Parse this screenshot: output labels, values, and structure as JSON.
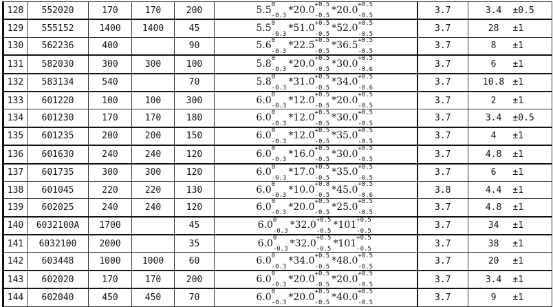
{
  "rows": [
    {
      "no": "128",
      "model": "552020",
      "c1": "170",
      "c2": "170",
      "c3": "200",
      "d": [
        {
          "v": "5.5",
          "up": "0",
          "dn": "-0.3"
        },
        {
          "v": "*20.0",
          "up": "+0.5",
          "dn": "-0.5"
        },
        {
          "v": "*20.0",
          "up": "+0.5",
          "dn": "-0.5"
        }
      ],
      "volt": "3.7",
      "mass": "3.4",
      "tol": "±0.5"
    },
    {
      "no": "129",
      "model": "555152",
      "c1": "1400",
      "c2": "1400",
      "c3": "45",
      "d": [
        {
          "v": "5.5",
          "up": "0",
          "dn": "-0.3"
        },
        {
          "v": "*51.0",
          "up": "+0.5",
          "dn": "-0.5"
        },
        {
          "v": "*52.0",
          "up": "+0.5",
          "dn": "-0.5"
        }
      ],
      "volt": "3.7",
      "mass": "28",
      "tol": "±1"
    },
    {
      "no": "130",
      "model": "562236",
      "c1": "400",
      "c2": "",
      "c3": "90",
      "d": [
        {
          "v": "5.6",
          "up": "0",
          "dn": "-0.3"
        },
        {
          "v": "*22.5",
          "up": "+0.5",
          "dn": "-0.5"
        },
        {
          "v": "*36.5",
          "up": "+0.5",
          "dn": "-0.5"
        }
      ],
      "volt": "3.7",
      "mass": "8",
      "tol": "±1"
    },
    {
      "no": "131",
      "model": "582030",
      "c1": "300",
      "c2": "300",
      "c3": "100",
      "d": [
        {
          "v": "5.8",
          "up": "0",
          "dn": "-0.3"
        },
        {
          "v": "*20.0",
          "up": "+0.5",
          "dn": "-0.5"
        },
        {
          "v": "*30.0",
          "up": "+0.5",
          "dn": "-0.6"
        }
      ],
      "volt": "3.7",
      "mass": "6",
      "tol": "±1"
    },
    {
      "no": "132",
      "model": "583134",
      "c1": "540",
      "c2": "",
      "c3": "70",
      "d": [
        {
          "v": "5.8",
          "up": "0",
          "dn": "-0.3"
        },
        {
          "v": "*31.0",
          "up": "+0.5",
          "dn": "-0.5"
        },
        {
          "v": "*34.0",
          "up": "+0.5",
          "dn": "-0.6"
        }
      ],
      "volt": "3.7",
      "mass": "10.8",
      "tol": "±1"
    },
    {
      "no": "133",
      "model": "601220",
      "c1": "100",
      "c2": "100",
      "c3": "300",
      "d": [
        {
          "v": "6.0",
          "up": "0",
          "dn": "-0.3"
        },
        {
          "v": "*12.0",
          "up": "+0.5",
          "dn": "-0.5"
        },
        {
          "v": "*20.0",
          "up": "+0.5",
          "dn": "-0.5"
        }
      ],
      "volt": "3.7",
      "mass": "2",
      "tol": "±1"
    },
    {
      "no": "134",
      "model": "601230",
      "c1": "170",
      "c2": "170",
      "c3": "180",
      "d": [
        {
          "v": "6.0",
          "up": "0",
          "dn": "-0.3"
        },
        {
          "v": "*12.0",
          "up": "+0.5",
          "dn": "-0.5"
        },
        {
          "v": "*30.0",
          "up": "+0.5",
          "dn": "-0.5"
        }
      ],
      "volt": "3.7",
      "mass": "3.4",
      "tol": "±0.5"
    },
    {
      "no": "135",
      "model": "601235",
      "c1": "200",
      "c2": "200",
      "c3": "150",
      "d": [
        {
          "v": "6.0",
          "up": "0",
          "dn": "-0.3"
        },
        {
          "v": "*12.0",
          "up": "+0.5",
          "dn": "-0.5"
        },
        {
          "v": "*35.0",
          "up": "+0.5",
          "dn": "-0.5"
        }
      ],
      "volt": "3.7",
      "mass": "4",
      "tol": "±1"
    },
    {
      "no": "136",
      "model": "601630",
      "c1": "240",
      "c2": "240",
      "c3": "120",
      "d": [
        {
          "v": "6.0",
          "up": "0",
          "dn": "-0.3"
        },
        {
          "v": "*16.0",
          "up": "+0.5",
          "dn": "-0.5"
        },
        {
          "v": "*30.0",
          "up": "+0.5",
          "dn": "-0.5"
        }
      ],
      "volt": "3.7",
      "mass": "4.8",
      "tol": "±1"
    },
    {
      "no": "137",
      "model": "601735",
      "c1": "300",
      "c2": "300",
      "c3": "120",
      "d": [
        {
          "v": "6.0",
          "up": "0",
          "dn": "-0.3"
        },
        {
          "v": "*17.0",
          "up": "+0.5",
          "dn": "-0.5"
        },
        {
          "v": "*35.0",
          "up": "+0.5",
          "dn": "-0.5"
        }
      ],
      "volt": "3.7",
      "mass": "6",
      "tol": "±1"
    },
    {
      "no": "138",
      "model": "601045",
      "c1": "220",
      "c2": "220",
      "c3": "130",
      "d": [
        {
          "v": "6.0",
          "up": "0",
          "dn": "-0.3"
        },
        {
          "v": "*10.0",
          "up": "+0.8",
          "dn": "-0.5"
        },
        {
          "v": "*45.0",
          "up": "+0.5",
          "dn": "-0.6"
        }
      ],
      "volt": "3.8",
      "mass": "4.4",
      "tol": "±1"
    },
    {
      "no": "139",
      "model": "602025",
      "c1": "240",
      "c2": "240",
      "c3": "120",
      "d": [
        {
          "v": "6.0",
          "up": "0",
          "dn": "-0.3"
        },
        {
          "v": "*20.0",
          "up": "+0.5",
          "dn": "-0.5"
        },
        {
          "v": "*25.0",
          "up": "+0.5",
          "dn": "-0.5"
        }
      ],
      "volt": "3.7",
      "mass": "4.8",
      "tol": "±1"
    },
    {
      "no": "140",
      "model": "6032100A",
      "c1": "1700",
      "c2": "",
      "c3": "45",
      "d": [
        {
          "v": "6.0",
          "up": "0",
          "dn": "-0.3"
        },
        {
          "v": "*32.0",
          "up": "+0.5",
          "dn": "-0.5"
        },
        {
          "v": "*101",
          "up": "+0.5",
          "dn": "-0.5"
        }
      ],
      "volt": "3.7",
      "mass": "34",
      "tol": "±1"
    },
    {
      "no": "141",
      "model": "6032100",
      "c1": "2000",
      "c2": "",
      "c3": "35",
      "d": [
        {
          "v": "6.0",
          "up": "0",
          "dn": "-0.3"
        },
        {
          "v": "*32.0",
          "up": "+0.5",
          "dn": "-0.5"
        },
        {
          "v": "*101",
          "up": "+0.5",
          "dn": "-0.5"
        }
      ],
      "volt": "3.7",
      "mass": "38",
      "tol": "±1"
    },
    {
      "no": "142",
      "model": "603448",
      "c1": "1000",
      "c2": "1000",
      "c3": "60",
      "d": [
        {
          "v": "6.0",
          "up": "0",
          "dn": "-0.3"
        },
        {
          "v": "*34.0",
          "up": "+0.5",
          "dn": "-0.5"
        },
        {
          "v": "*48.0",
          "up": "+0.5",
          "dn": "-0.5"
        }
      ],
      "volt": "3.7",
      "mass": "20",
      "tol": "±1"
    },
    {
      "no": "143",
      "model": "602020",
      "c1": "170",
      "c2": "170",
      "c3": "200",
      "d": [
        {
          "v": "6.0",
          "up": "0",
          "dn": "-0.3"
        },
        {
          "v": "*20.0",
          "up": "+0.5",
          "dn": "-0.5"
        },
        {
          "v": "*20.0",
          "up": "+0.5",
          "dn": "-0.5"
        }
      ],
      "volt": "3.7",
      "mass": "3.4",
      "tol": "±1"
    },
    {
      "no": "144",
      "model": "602040",
      "c1": "450",
      "c2": "450",
      "c3": "70",
      "d": [
        {
          "v": "6.0",
          "up": "0",
          "dn": "-0.3"
        },
        {
          "v": "*20.0",
          "up": "+0.5",
          "dn": "-0.5"
        },
        {
          "v": "*40.0",
          "up": "+0.5",
          "dn": "-0.5"
        }
      ],
      "volt": "3.7",
      "mass": "9",
      "tol": "±1"
    }
  ]
}
